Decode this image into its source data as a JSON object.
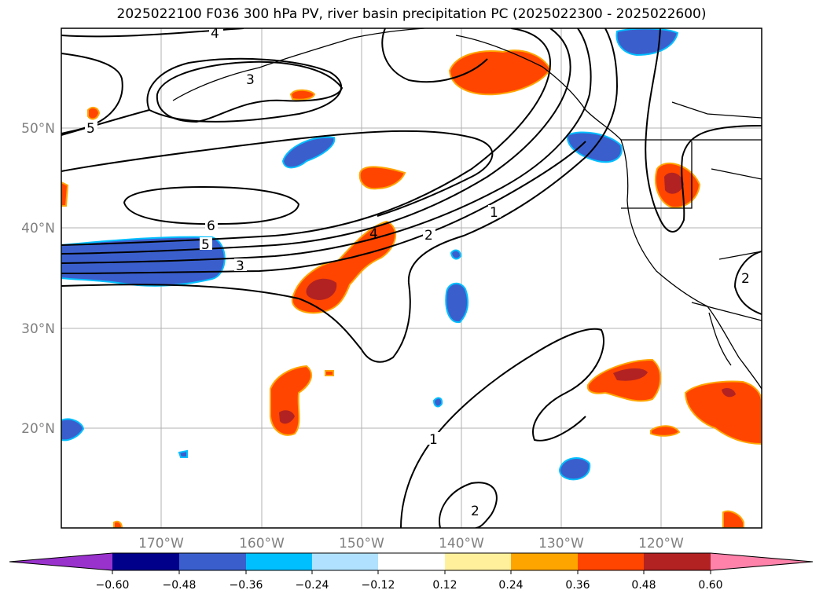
{
  "title": "2025022100 F036 300 hPa PV, river basin precipitation PC (2025022300 - 2025022600)",
  "map": {
    "lat_labels": [
      "50°N",
      "40°N",
      "30°N",
      "20°N"
    ],
    "lon_labels": [
      "170°W",
      "160°W",
      "150°W",
      "140°W",
      "130°W",
      "120°W"
    ],
    "contour_labels": [
      "4",
      "3",
      "5",
      "6",
      "5",
      "3",
      "4",
      "2",
      "1",
      "1",
      "2",
      "2"
    ]
  },
  "colorbar": {
    "colors": [
      "#9932cc",
      "#00008b",
      "#3a5fcd",
      "#00bfff",
      "#b0e2ff",
      "#ffffff",
      "#fff09c",
      "#ffa500",
      "#ff4500",
      "#b22222",
      "#ff82ab"
    ],
    "ticks": [
      "−0.60",
      "−0.48",
      "−0.36",
      "−0.24",
      "−0.12",
      "0.12",
      "0.24",
      "0.36",
      "0.48",
      "0.60"
    ]
  },
  "colors": {
    "positive": "#ff4500",
    "positive_strong": "#b22222",
    "negative": "#3a5fcd",
    "negative_edge": "#00bfff",
    "contour": "#000000"
  }
}
